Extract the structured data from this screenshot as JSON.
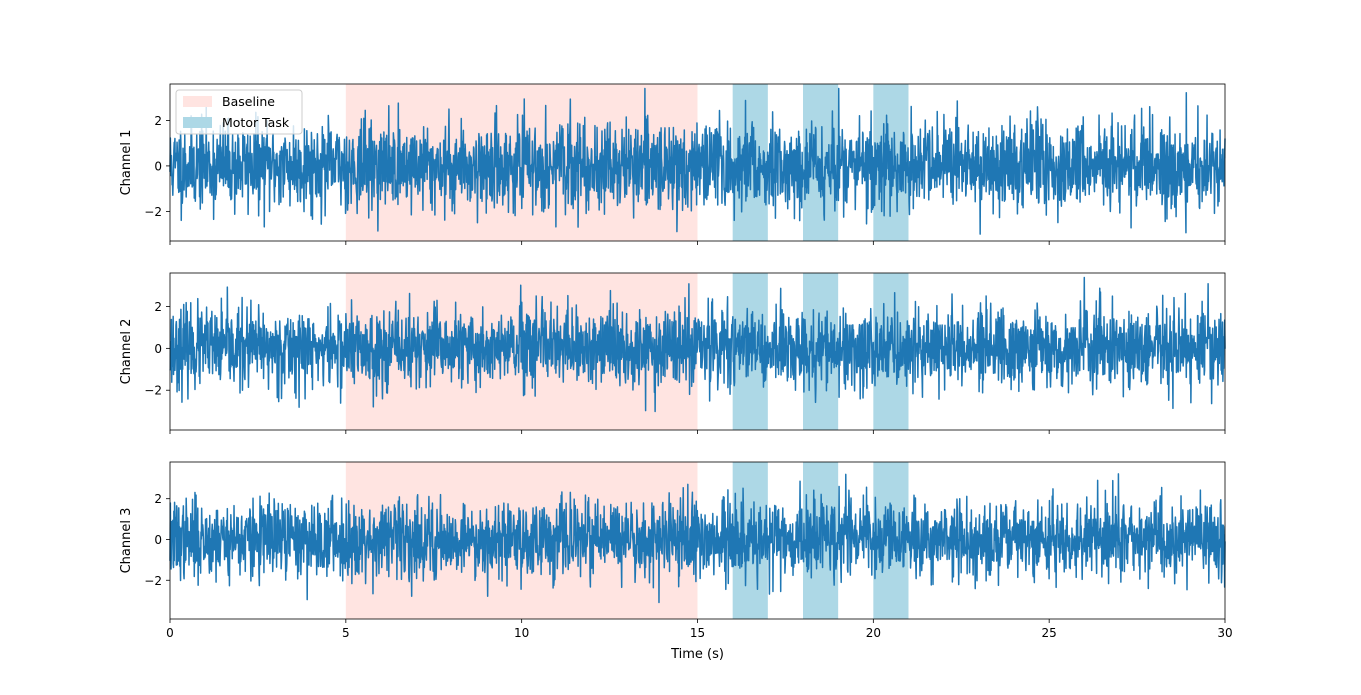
{
  "chart_data": {
    "type": "line",
    "xlabel": "Time (s)",
    "xlim": [
      0,
      30
    ],
    "x_ticks": [
      0,
      5,
      10,
      15,
      20,
      25,
      30
    ],
    "y_ticks": [
      -2,
      0,
      2
    ],
    "legend": {
      "placement": "top-left",
      "entries": [
        "Baseline",
        "Motor Task"
      ]
    },
    "shaded_regions": [
      {
        "label": "Baseline",
        "color": "#ffe4e1",
        "x_start": 5,
        "x_end": 15
      },
      {
        "label": "Motor Task",
        "color": "#add8e6",
        "x_start": 16,
        "x_end": 17
      },
      {
        "label": "Motor Task",
        "color": "#add8e6",
        "x_start": 18,
        "x_end": 19
      },
      {
        "label": "Motor Task",
        "color": "#add8e6",
        "x_start": 20,
        "x_end": 21
      }
    ],
    "line_color": "#1f77b4",
    "series": [
      {
        "name": "Channel 1",
        "ylabel": "Channel 1",
        "ylim": [
          -3.3,
          3.6
        ],
        "y_min": -3.0,
        "y_max": 3.4,
        "sample_count": 3000,
        "seed": 11
      },
      {
        "name": "Channel 2",
        "ylabel": "Channel 2",
        "ylim": [
          -3.9,
          3.6
        ],
        "y_min": -3.5,
        "y_max": 3.4,
        "sample_count": 3000,
        "seed": 23
      },
      {
        "name": "Channel 3",
        "ylabel": "Channel 3",
        "ylim": [
          -3.9,
          3.8
        ],
        "y_min": -3.5,
        "y_max": 3.4,
        "sample_count": 3000,
        "seed": 37
      }
    ]
  }
}
